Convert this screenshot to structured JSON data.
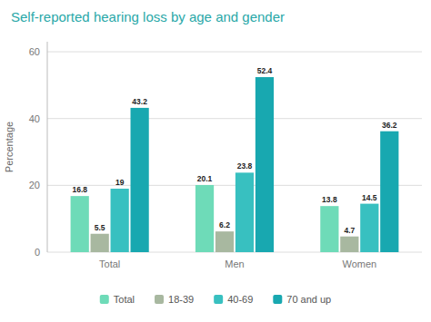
{
  "chart_data": {
    "type": "bar",
    "title": "Self-reported hearing loss by age and gender",
    "y_label": "Percentage",
    "categories": [
      "Total",
      "Men",
      "Women"
    ],
    "series": [
      {
        "name": "Total",
        "color": "#6edbb8",
        "values": [
          16.8,
          20.1,
          13.8
        ]
      },
      {
        "name": "18-39",
        "color": "#a8b8a0",
        "values": [
          5.5,
          6.2,
          4.7
        ]
      },
      {
        "name": "40-69",
        "color": "#38c0c0",
        "values": [
          19.0,
          23.8,
          14.5
        ]
      },
      {
        "name": "70 and up",
        "color": "#18a8b0",
        "values": [
          43.2,
          52.4,
          36.2
        ]
      }
    ],
    "ylim": [
      0,
      63
    ],
    "yticks": [
      0,
      20,
      40,
      60
    ],
    "grid": true,
    "legend": "bottom",
    "data_labels": true
  }
}
